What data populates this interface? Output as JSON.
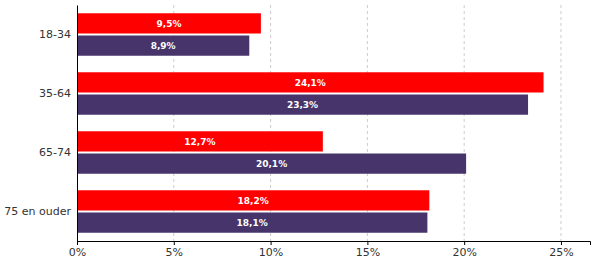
{
  "chart_data": {
    "type": "bar",
    "orientation": "horizontal",
    "categories": [
      "18-34",
      "35-64",
      "65-74",
      "75 en ouder"
    ],
    "series": [
      {
        "color": "#ff0000",
        "values": [
          9.5,
          24.1,
          12.7,
          18.2
        ],
        "value_labels": [
          "9,5%",
          "24,1%",
          "12,7%",
          "18,2%"
        ]
      },
      {
        "color": "#46346a",
        "values": [
          8.9,
          23.3,
          20.1,
          18.1
        ],
        "value_labels": [
          "8,9%",
          "23,3%",
          "20,1%",
          "18,1%"
        ]
      }
    ],
    "xlim": [
      0,
      26.5
    ],
    "xticks": [
      {
        "value": 0,
        "label": "0%"
      },
      {
        "value": 5,
        "label": "5%"
      },
      {
        "value": 10,
        "label": "10%"
      },
      {
        "value": 15,
        "label": "15%"
      },
      {
        "value": 20,
        "label": "20%"
      },
      {
        "value": 25,
        "label": "25%"
      }
    ],
    "grid": true,
    "data_labels": true
  }
}
